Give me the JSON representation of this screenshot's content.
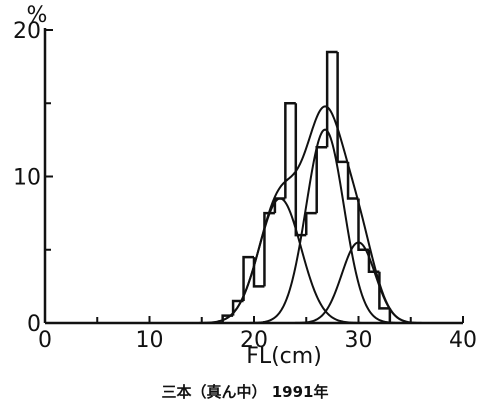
{
  "chart_data": {
    "type": "histogram",
    "caption": "三本（真ん中） 1991年",
    "xlabel": "FL(cm)",
    "ylabel_unit": "%",
    "xlim": [
      0,
      40
    ],
    "ylim": [
      0,
      20
    ],
    "x_ticks": [
      0,
      10,
      20,
      30,
      40
    ],
    "x_minor_ticks": [
      5,
      15,
      25,
      35
    ],
    "y_ticks": [
      0,
      10,
      20
    ],
    "y_tick_labels": [
      "0",
      "10",
      "20"
    ],
    "y_minor_ticks": [
      5,
      15
    ],
    "grid": false,
    "histogram": {
      "bin_width": 1,
      "bins": [
        {
          "x0": 17,
          "value": 0.5
        },
        {
          "x0": 18,
          "value": 1.5
        },
        {
          "x0": 19,
          "value": 4.5
        },
        {
          "x0": 20,
          "value": 2.5
        },
        {
          "x0": 21,
          "value": 7.5
        },
        {
          "x0": 22,
          "value": 8.5
        },
        {
          "x0": 23,
          "value": 15.0
        },
        {
          "x0": 24,
          "value": 6.0
        },
        {
          "x0": 25,
          "value": 7.5
        },
        {
          "x0": 26,
          "value": 12.0
        },
        {
          "x0": 27,
          "value": 18.5
        },
        {
          "x0": 28,
          "value": 11.0
        },
        {
          "x0": 29,
          "value": 8.5
        },
        {
          "x0": 30,
          "value": 5.0
        },
        {
          "x0": 31,
          "value": 3.5
        },
        {
          "x0": 32,
          "value": 1.0
        }
      ]
    },
    "fitted_components": [
      {
        "mean": 22.5,
        "sd": 2.0,
        "peak": 8.5
      },
      {
        "mean": 26.8,
        "sd": 1.8,
        "peak": 13.2
      },
      {
        "mean": 30.0,
        "sd": 1.6,
        "peak": 5.5
      }
    ],
    "combined_curve": true
  }
}
